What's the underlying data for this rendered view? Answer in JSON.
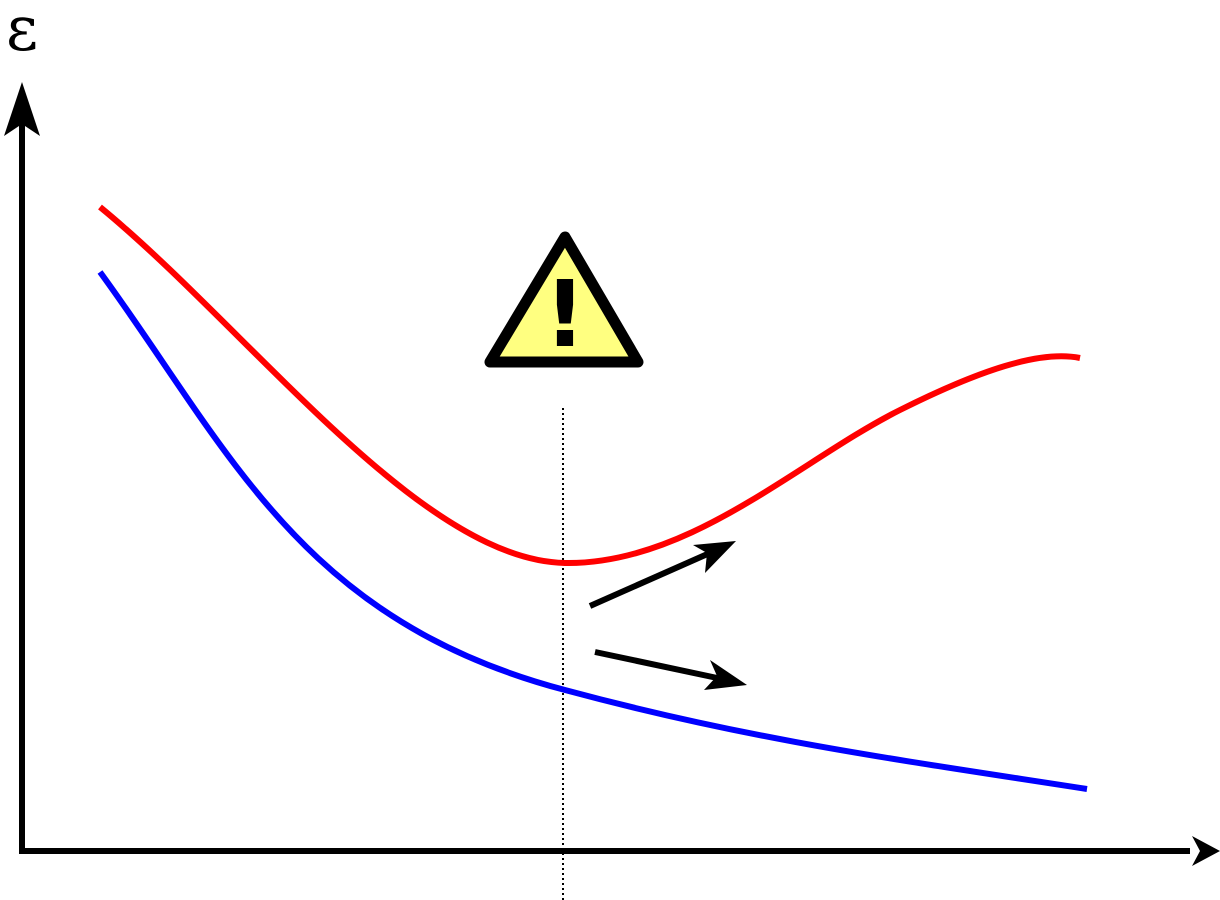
{
  "axis_label": "ε",
  "warning_symbol": "!"
}
